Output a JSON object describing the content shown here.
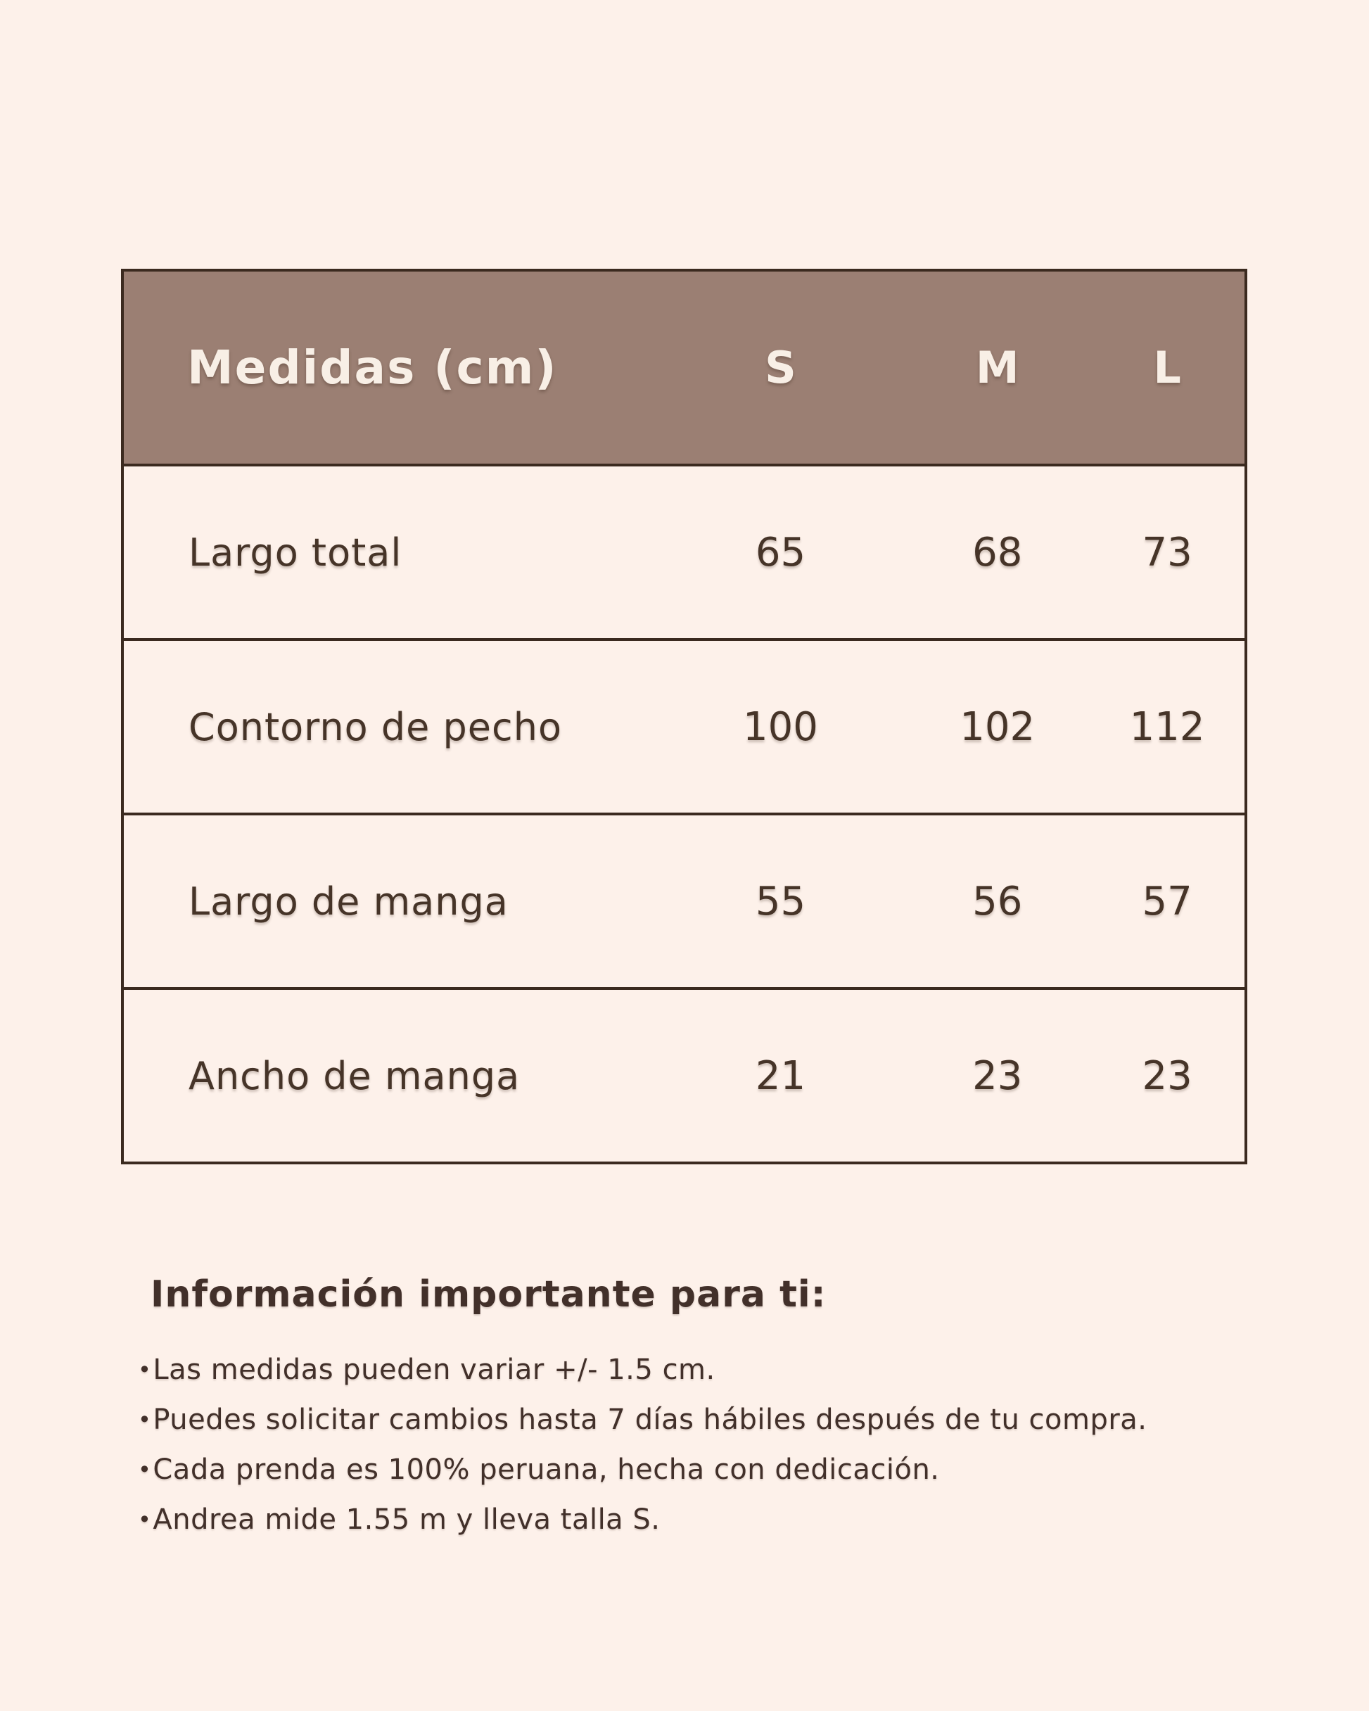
{
  "table": {
    "header": {
      "label": "Medidas (cm)",
      "sizes": [
        "S",
        "M",
        "L"
      ]
    },
    "rows": [
      {
        "label": "Largo total",
        "values": [
          "65",
          "68",
          "73"
        ]
      },
      {
        "label": "Contorno de pecho",
        "values": [
          "100",
          "102",
          "112"
        ]
      },
      {
        "label": "Largo de manga",
        "values": [
          "55",
          "56",
          "57"
        ]
      },
      {
        "label": "Ancho de manga",
        "values": [
          "21",
          "23",
          "23"
        ]
      }
    ]
  },
  "info": {
    "title": "Información importante para ti:",
    "bullets": [
      "Las medidas pueden variar +/- 1.5 cm.",
      "Puedes solicitar cambios hasta 7 días hábiles después de tu compra.",
      "Cada prenda es 100% peruana, hecha con dedicación.",
      "Andrea mide 1.55 m y lleva talla S."
    ]
  },
  "colors": {
    "page_background": "#fdf1ea",
    "header_background": "#9b7f73",
    "header_text": "#f8efe6",
    "body_text": "#463428",
    "border": "#3b2a1f"
  }
}
